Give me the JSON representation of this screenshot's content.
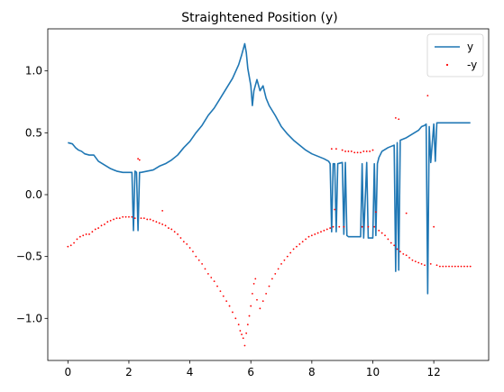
{
  "chart_data": {
    "type": "line",
    "title": "Straightened Position (y)",
    "xlabel": "",
    "ylabel": "",
    "xlim": [
      -0.66,
      13.8
    ],
    "ylim": [
      -1.34,
      1.34
    ],
    "x_ticks": [
      0,
      2,
      4,
      6,
      8,
      10,
      12
    ],
    "y_ticks": [
      -1.0,
      -0.5,
      0.0,
      0.5,
      1.0
    ],
    "x_tick_labels": [
      "0",
      "2",
      "4",
      "6",
      "8",
      "10",
      "12"
    ],
    "y_tick_labels": [
      "−1.0",
      "−0.5",
      "0.0",
      "0.5",
      "1.0"
    ],
    "grid": false,
    "legend_position": "top-right",
    "series": [
      {
        "name": "y",
        "style": "line",
        "color": "#1f77b4",
        "points": [
          [
            0.0,
            0.42
          ],
          [
            0.15,
            0.41
          ],
          [
            0.25,
            0.38
          ],
          [
            0.35,
            0.36
          ],
          [
            0.45,
            0.35
          ],
          [
            0.55,
            0.33
          ],
          [
            0.7,
            0.32
          ],
          [
            0.85,
            0.32
          ],
          [
            1.0,
            0.27
          ],
          [
            1.2,
            0.24
          ],
          [
            1.4,
            0.21
          ],
          [
            1.6,
            0.19
          ],
          [
            1.8,
            0.18
          ],
          [
            2.0,
            0.18
          ],
          [
            2.1,
            0.18
          ],
          [
            2.15,
            -0.29
          ],
          [
            2.2,
            0.19
          ],
          [
            2.25,
            0.18
          ],
          [
            2.3,
            -0.29
          ],
          [
            2.35,
            0.18
          ],
          [
            2.4,
            0.18
          ],
          [
            2.6,
            0.19
          ],
          [
            2.8,
            0.2
          ],
          [
            3.0,
            0.23
          ],
          [
            3.2,
            0.25
          ],
          [
            3.4,
            0.28
          ],
          [
            3.6,
            0.32
          ],
          [
            3.8,
            0.38
          ],
          [
            4.0,
            0.43
          ],
          [
            4.2,
            0.5
          ],
          [
            4.4,
            0.56
          ],
          [
            4.6,
            0.64
          ],
          [
            4.8,
            0.7
          ],
          [
            5.0,
            0.78
          ],
          [
            5.2,
            0.86
          ],
          [
            5.4,
            0.94
          ],
          [
            5.6,
            1.05
          ],
          [
            5.7,
            1.13
          ],
          [
            5.8,
            1.22
          ],
          [
            5.85,
            1.15
          ],
          [
            5.9,
            1.02
          ],
          [
            6.0,
            0.88
          ],
          [
            6.05,
            0.72
          ],
          [
            6.1,
            0.84
          ],
          [
            6.2,
            0.93
          ],
          [
            6.3,
            0.84
          ],
          [
            6.4,
            0.88
          ],
          [
            6.5,
            0.78
          ],
          [
            6.6,
            0.72
          ],
          [
            6.8,
            0.64
          ],
          [
            7.0,
            0.55
          ],
          [
            7.2,
            0.49
          ],
          [
            7.4,
            0.44
          ],
          [
            7.6,
            0.4
          ],
          [
            7.8,
            0.36
          ],
          [
            8.0,
            0.33
          ],
          [
            8.2,
            0.31
          ],
          [
            8.4,
            0.29
          ],
          [
            8.55,
            0.27
          ],
          [
            8.6,
            0.25
          ],
          [
            8.65,
            -0.3
          ],
          [
            8.7,
            0.25
          ],
          [
            8.75,
            0.25
          ],
          [
            8.8,
            -0.3
          ],
          [
            8.85,
            0.25
          ],
          [
            9.0,
            0.26
          ],
          [
            9.05,
            -0.32
          ],
          [
            9.1,
            0.26
          ],
          [
            9.15,
            -0.33
          ],
          [
            9.2,
            -0.34
          ],
          [
            9.4,
            -0.34
          ],
          [
            9.6,
            -0.34
          ],
          [
            9.65,
            0.25
          ],
          [
            9.7,
            -0.35
          ],
          [
            9.8,
            0.26
          ],
          [
            9.85,
            -0.35
          ],
          [
            9.9,
            -0.35
          ],
          [
            10.0,
            -0.35
          ],
          [
            10.05,
            0.25
          ],
          [
            10.1,
            -0.33
          ],
          [
            10.15,
            0.25
          ],
          [
            10.2,
            0.3
          ],
          [
            10.3,
            0.35
          ],
          [
            10.5,
            0.38
          ],
          [
            10.7,
            0.4
          ],
          [
            10.75,
            -0.62
          ],
          [
            10.8,
            0.42
          ],
          [
            10.85,
            -0.61
          ],
          [
            10.9,
            0.44
          ],
          [
            11.1,
            0.46
          ],
          [
            11.3,
            0.49
          ],
          [
            11.5,
            0.52
          ],
          [
            11.6,
            0.55
          ],
          [
            11.7,
            0.56
          ],
          [
            11.75,
            0.57
          ],
          [
            11.8,
            -0.8
          ],
          [
            11.85,
            0.55
          ],
          [
            11.9,
            0.26
          ],
          [
            12.0,
            0.57
          ],
          [
            12.05,
            0.27
          ],
          [
            12.1,
            0.58
          ],
          [
            12.4,
            0.58
          ],
          [
            12.7,
            0.58
          ],
          [
            13.0,
            0.58
          ],
          [
            13.2,
            0.58
          ]
        ]
      },
      {
        "name": "-y",
        "style": "scatter",
        "color": "#ff0000",
        "points": [
          [
            0.0,
            -0.42
          ],
          [
            0.1,
            -0.41
          ],
          [
            0.2,
            -0.39
          ],
          [
            0.3,
            -0.36
          ],
          [
            0.4,
            -0.34
          ],
          [
            0.5,
            -0.33
          ],
          [
            0.6,
            -0.32
          ],
          [
            0.7,
            -0.32
          ],
          [
            0.8,
            -0.3
          ],
          [
            0.9,
            -0.28
          ],
          [
            1.0,
            -0.27
          ],
          [
            1.1,
            -0.25
          ],
          [
            1.2,
            -0.24
          ],
          [
            1.3,
            -0.22
          ],
          [
            1.4,
            -0.21
          ],
          [
            1.5,
            -0.2
          ],
          [
            1.6,
            -0.19
          ],
          [
            1.7,
            -0.19
          ],
          [
            1.8,
            -0.18
          ],
          [
            1.9,
            -0.18
          ],
          [
            2.0,
            -0.18
          ],
          [
            2.1,
            -0.18
          ],
          [
            2.2,
            -0.19
          ],
          [
            2.3,
            0.29
          ],
          [
            2.35,
            0.28
          ],
          [
            2.4,
            -0.19
          ],
          [
            2.5,
            -0.19
          ],
          [
            2.6,
            -0.2
          ],
          [
            2.7,
            -0.2
          ],
          [
            2.8,
            -0.21
          ],
          [
            2.9,
            -0.22
          ],
          [
            3.0,
            -0.23
          ],
          [
            3.1,
            -0.13
          ],
          [
            3.1,
            -0.24
          ],
          [
            3.2,
            -0.25
          ],
          [
            3.3,
            -0.27
          ],
          [
            3.4,
            -0.28
          ],
          [
            3.5,
            -0.3
          ],
          [
            3.6,
            -0.32
          ],
          [
            3.7,
            -0.35
          ],
          [
            3.8,
            -0.38
          ],
          [
            3.9,
            -0.4
          ],
          [
            4.0,
            -0.43
          ],
          [
            4.1,
            -0.46
          ],
          [
            4.2,
            -0.5
          ],
          [
            4.3,
            -0.53
          ],
          [
            4.4,
            -0.56
          ],
          [
            4.5,
            -0.6
          ],
          [
            4.6,
            -0.64
          ],
          [
            4.7,
            -0.67
          ],
          [
            4.8,
            -0.7
          ],
          [
            4.9,
            -0.74
          ],
          [
            5.0,
            -0.78
          ],
          [
            5.1,
            -0.82
          ],
          [
            5.2,
            -0.86
          ],
          [
            5.3,
            -0.9
          ],
          [
            5.4,
            -0.95
          ],
          [
            5.5,
            -1.0
          ],
          [
            5.6,
            -1.05
          ],
          [
            5.65,
            -1.1
          ],
          [
            5.7,
            -1.13
          ],
          [
            5.75,
            -1.16
          ],
          [
            5.8,
            -1.22
          ],
          [
            5.85,
            -1.12
          ],
          [
            5.9,
            -1.05
          ],
          [
            5.95,
            -0.98
          ],
          [
            6.0,
            -0.9
          ],
          [
            6.05,
            -0.8
          ],
          [
            6.1,
            -0.72
          ],
          [
            6.15,
            -0.68
          ],
          [
            6.2,
            -0.85
          ],
          [
            6.3,
            -0.92
          ],
          [
            6.4,
            -0.86
          ],
          [
            6.5,
            -0.8
          ],
          [
            6.6,
            -0.74
          ],
          [
            6.7,
            -0.68
          ],
          [
            6.8,
            -0.64
          ],
          [
            6.9,
            -0.6
          ],
          [
            7.0,
            -0.56
          ],
          [
            7.1,
            -0.53
          ],
          [
            7.2,
            -0.5
          ],
          [
            7.3,
            -0.47
          ],
          [
            7.4,
            -0.44
          ],
          [
            7.5,
            -0.42
          ],
          [
            7.6,
            -0.4
          ],
          [
            7.7,
            -0.38
          ],
          [
            7.8,
            -0.36
          ],
          [
            7.9,
            -0.34
          ],
          [
            8.0,
            -0.33
          ],
          [
            8.1,
            -0.32
          ],
          [
            8.2,
            -0.31
          ],
          [
            8.3,
            -0.3
          ],
          [
            8.4,
            -0.29
          ],
          [
            8.5,
            -0.28
          ],
          [
            8.6,
            -0.27
          ],
          [
            8.65,
            0.37
          ],
          [
            8.7,
            -0.26
          ],
          [
            8.75,
            -0.12
          ],
          [
            8.8,
            0.37
          ],
          [
            8.9,
            -0.26
          ],
          [
            9.0,
            0.36
          ],
          [
            9.05,
            -0.26
          ],
          [
            9.1,
            0.35
          ],
          [
            9.2,
            0.35
          ],
          [
            9.3,
            0.35
          ],
          [
            9.4,
            0.34
          ],
          [
            9.5,
            0.34
          ],
          [
            9.6,
            0.34
          ],
          [
            9.65,
            -0.26
          ],
          [
            9.7,
            0.35
          ],
          [
            9.8,
            0.35
          ],
          [
            9.85,
            -0.26
          ],
          [
            9.9,
            0.35
          ],
          [
            10.0,
            0.36
          ],
          [
            10.05,
            -0.26
          ],
          [
            10.1,
            -0.14
          ],
          [
            10.2,
            -0.29
          ],
          [
            10.3,
            -0.31
          ],
          [
            10.4,
            -0.33
          ],
          [
            10.5,
            -0.36
          ],
          [
            10.6,
            -0.39
          ],
          [
            10.7,
            -0.41
          ],
          [
            10.75,
            0.62
          ],
          [
            10.8,
            -0.44
          ],
          [
            10.85,
            0.61
          ],
          [
            10.9,
            -0.46
          ],
          [
            11.0,
            -0.48
          ],
          [
            11.1,
            -0.49
          ],
          [
            11.2,
            -0.51
          ],
          [
            11.3,
            -0.53
          ],
          [
            11.4,
            -0.54
          ],
          [
            11.5,
            -0.55
          ],
          [
            11.6,
            -0.56
          ],
          [
            11.7,
            -0.57
          ],
          [
            11.8,
            0.8
          ],
          [
            11.9,
            -0.56
          ],
          [
            12.0,
            -0.26
          ],
          [
            12.1,
            -0.57
          ],
          [
            12.2,
            -0.58
          ],
          [
            12.3,
            -0.58
          ],
          [
            12.4,
            -0.58
          ],
          [
            12.5,
            -0.58
          ],
          [
            12.6,
            -0.58
          ],
          [
            12.7,
            -0.58
          ],
          [
            12.8,
            -0.58
          ],
          [
            12.9,
            -0.58
          ],
          [
            13.0,
            -0.58
          ],
          [
            13.1,
            -0.58
          ],
          [
            13.2,
            -0.58
          ],
          [
            11.1,
            -0.15
          ]
        ]
      }
    ]
  }
}
